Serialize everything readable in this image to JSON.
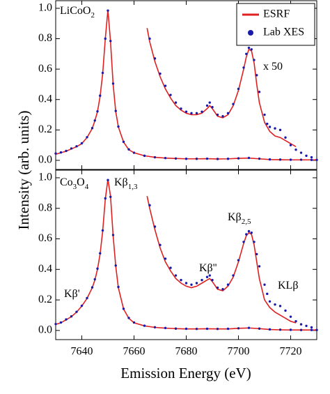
{
  "axes": {
    "xlabel": "Emission Energy (eV)",
    "ylabel": "Intensity (arb. units)"
  },
  "chart_data": [
    {
      "type": "line",
      "legend": "upper right",
      "annotations": [
        {
          "parts": [
            "LiCoO",
            "2"
          ]
        },
        {
          "parts": [
            "x 50"
          ]
        }
      ],
      "xlim": [
        7630,
        7730
      ],
      "xticks": [
        7640,
        7660,
        7680,
        7700,
        7720
      ],
      "ylim": [
        -0.06,
        1.05
      ],
      "yticks": [
        {
          "value": 0,
          "label": "0.0"
        },
        0.2,
        0.4,
        0.6,
        0.8,
        {
          "value": 1,
          "label": "1.0"
        }
      ],
      "x": [
        7630,
        7632,
        7634,
        7636,
        7638,
        7640,
        7642,
        7644,
        7645,
        7646,
        7647,
        7648,
        7649,
        7650,
        7651,
        7652,
        7653,
        7654,
        7656,
        7658,
        7660,
        7664,
        7668,
        7672,
        7676,
        7680,
        7684,
        7688,
        7692,
        7696,
        7700,
        7704,
        7708,
        7712,
        7716,
        7720,
        7724,
        7728,
        7730
      ],
      "series": [
        {
          "name": "ESRF",
          "color": "#e02020",
          "style": "line",
          "values": [
            0.04,
            0.05,
            0.06,
            0.075,
            0.09,
            0.11,
            0.15,
            0.21,
            0.26,
            0.32,
            0.42,
            0.57,
            0.8,
            0.99,
            0.78,
            0.5,
            0.32,
            0.22,
            0.12,
            0.07,
            0.05,
            0.03,
            0.02,
            0.015,
            0.012,
            0.01,
            0.01,
            0.011,
            0.009,
            0.01,
            0.013,
            0.015,
            0.01,
            0.005,
            0.004,
            0.003,
            0.003,
            0.003,
            0.003
          ]
        },
        {
          "name": "Lab XES",
          "color": "#1a1aa8",
          "style": "dots",
          "values": [
            0.045,
            0.052,
            0.062,
            0.078,
            0.092,
            0.112,
            0.152,
            0.212,
            0.262,
            0.322,
            0.425,
            0.575,
            0.8,
            0.985,
            0.785,
            0.505,
            0.325,
            0.222,
            0.122,
            0.072,
            0.05,
            0.03,
            0.02,
            0.015,
            0.012,
            0.01,
            0.01,
            0.011,
            0.009,
            0.01,
            0.013,
            0.016,
            0.011,
            0.006,
            0.005,
            0.004,
            0.004,
            0.003,
            0.003
          ]
        },
        {
          "color": "#e02020",
          "style": "line",
          "x": [
            7665,
            7666,
            7668,
            7670,
            7672,
            7674,
            7676,
            7678,
            7680,
            7682,
            7684,
            7686,
            7688,
            7689,
            7690,
            7692,
            7694,
            7696,
            7698,
            7700,
            7702,
            7703,
            7704,
            7705,
            7706,
            7707,
            7708,
            7710,
            7712,
            7714,
            7716,
            7718,
            7720,
            7722
          ],
          "values": [
            0.87,
            0.78,
            0.65,
            0.55,
            0.47,
            0.41,
            0.36,
            0.33,
            0.31,
            0.3,
            0.3,
            0.31,
            0.34,
            0.36,
            0.34,
            0.29,
            0.28,
            0.3,
            0.36,
            0.46,
            0.6,
            0.68,
            0.73,
            0.72,
            0.64,
            0.5,
            0.38,
            0.25,
            0.19,
            0.16,
            0.15,
            0.13,
            0.11,
            0.09
          ]
        },
        {
          "color": "#1a1aa8",
          "style": "dots",
          "x": [
            7666,
            7668,
            7670,
            7672,
            7674,
            7676,
            7678,
            7680,
            7682,
            7684,
            7686,
            7688,
            7689,
            7690,
            7692,
            7694,
            7696,
            7698,
            7700,
            7702,
            7703,
            7704,
            7705,
            7706,
            7707,
            7708,
            7710,
            7711,
            7712,
            7714,
            7716,
            7718,
            7720,
            7722,
            7724,
            7726,
            7728
          ],
          "values": [
            0.8,
            0.67,
            0.57,
            0.49,
            0.43,
            0.38,
            0.34,
            0.32,
            0.31,
            0.31,
            0.32,
            0.36,
            0.38,
            0.35,
            0.3,
            0.29,
            0.31,
            0.37,
            0.47,
            0.61,
            0.7,
            0.74,
            0.73,
            0.66,
            0.56,
            0.45,
            0.3,
            0.24,
            0.22,
            0.21,
            0.2,
            0.15,
            0.1,
            0.07,
            0.05,
            0.03,
            0.02
          ]
        }
      ]
    },
    {
      "type": "line",
      "annotations": [
        {
          "parts": [
            "Co",
            "3",
            "O",
            "4"
          ]
        },
        {
          "parts": [
            "Kβ",
            "1,3"
          ]
        },
        {
          "parts": [
            "Kβ'"
          ]
        },
        {
          "parts": [
            "Kβ''"
          ]
        },
        {
          "parts": [
            "Kβ",
            "2,5"
          ]
        },
        {
          "parts": [
            "KLβ"
          ]
        }
      ],
      "xlim": [
        7630,
        7730
      ],
      "xticks": [
        7640,
        7660,
        7680,
        7700,
        7720
      ],
      "ylim": [
        -0.06,
        1.05
      ],
      "yticks": [
        {
          "value": 0,
          "label": "0.0"
        },
        0.2,
        0.4,
        0.6,
        0.8,
        {
          "value": 1,
          "label": "1.0"
        }
      ],
      "x": [
        7630,
        7632,
        7634,
        7636,
        7638,
        7640,
        7642,
        7644,
        7645,
        7646,
        7647,
        7648,
        7649,
        7650,
        7651,
        7652,
        7653,
        7654,
        7656,
        7658,
        7660,
        7664,
        7668,
        7672,
        7676,
        7680,
        7684,
        7688,
        7692,
        7696,
        7700,
        7704,
        7708,
        7712,
        7716,
        7720,
        7724,
        7728,
        7730
      ],
      "series": [
        {
          "color": "#e02020",
          "style": "line",
          "values": [
            0.04,
            0.05,
            0.07,
            0.09,
            0.12,
            0.16,
            0.21,
            0.28,
            0.33,
            0.4,
            0.5,
            0.65,
            0.86,
            0.99,
            0.88,
            0.62,
            0.42,
            0.28,
            0.14,
            0.08,
            0.05,
            0.03,
            0.02,
            0.015,
            0.012,
            0.01,
            0.01,
            0.011,
            0.01,
            0.01,
            0.014,
            0.016,
            0.012,
            0.006,
            0.004,
            0.003,
            0.003,
            0.003,
            0.003
          ]
        },
        {
          "color": "#1a1aa8",
          "style": "dots",
          "values": [
            0.042,
            0.052,
            0.072,
            0.092,
            0.122,
            0.162,
            0.212,
            0.282,
            0.335,
            0.405,
            0.505,
            0.655,
            0.865,
            0.985,
            0.875,
            0.625,
            0.425,
            0.285,
            0.142,
            0.082,
            0.052,
            0.031,
            0.021,
            0.016,
            0.012,
            0.011,
            0.01,
            0.011,
            0.01,
            0.011,
            0.014,
            0.017,
            0.012,
            0.007,
            0.005,
            0.004,
            0.003,
            0.003,
            0.003
          ]
        },
        {
          "color": "#e02020",
          "style": "line",
          "x": [
            7665,
            7666,
            7668,
            7670,
            7672,
            7674,
            7676,
            7678,
            7680,
            7682,
            7684,
            7686,
            7688,
            7689,
            7690,
            7692,
            7694,
            7696,
            7698,
            7700,
            7702,
            7703,
            7704,
            7705,
            7706,
            7707,
            7708,
            7710,
            7712,
            7714,
            7716,
            7718,
            7720,
            7722
          ],
          "values": [
            0.88,
            0.8,
            0.66,
            0.54,
            0.45,
            0.39,
            0.34,
            0.31,
            0.29,
            0.28,
            0.29,
            0.31,
            0.33,
            0.34,
            0.32,
            0.27,
            0.26,
            0.29,
            0.35,
            0.45,
            0.57,
            0.62,
            0.64,
            0.63,
            0.56,
            0.45,
            0.34,
            0.2,
            0.15,
            0.12,
            0.1,
            0.08,
            0.06,
            0.05
          ]
        },
        {
          "color": "#1a1aa8",
          "style": "dots",
          "x": [
            7666,
            7668,
            7670,
            7672,
            7674,
            7676,
            7678,
            7680,
            7682,
            7684,
            7686,
            7688,
            7689,
            7690,
            7692,
            7694,
            7696,
            7698,
            7700,
            7702,
            7703,
            7704,
            7705,
            7706,
            7707,
            7708,
            7710,
            7711,
            7712,
            7714,
            7716,
            7718,
            7720,
            7722,
            7724,
            7726,
            7728
          ],
          "values": [
            0.82,
            0.68,
            0.56,
            0.47,
            0.41,
            0.36,
            0.33,
            0.31,
            0.3,
            0.31,
            0.33,
            0.35,
            0.36,
            0.33,
            0.28,
            0.27,
            0.3,
            0.36,
            0.46,
            0.58,
            0.63,
            0.65,
            0.64,
            0.58,
            0.5,
            0.42,
            0.3,
            0.24,
            0.19,
            0.17,
            0.16,
            0.13,
            0.09,
            0.06,
            0.04,
            0.03,
            0.02
          ]
        }
      ]
    }
  ]
}
